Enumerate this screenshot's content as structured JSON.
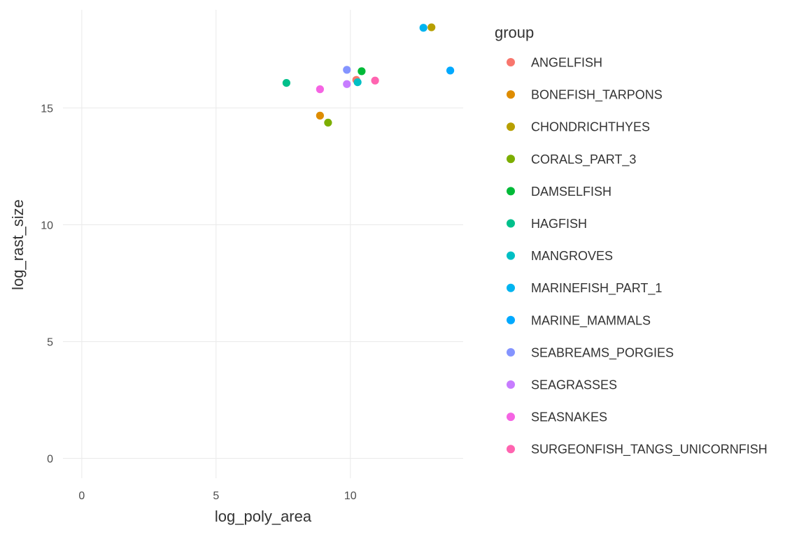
{
  "chart_data": {
    "type": "scatter",
    "xlabel": "log_poly_area",
    "ylabel": "log_rast_size",
    "xlim": [
      -0.7,
      14.2
    ],
    "ylim": [
      -0.85,
      19.2
    ],
    "x_ticks": [
      0,
      5,
      10
    ],
    "y_ticks": [
      0,
      5,
      10,
      15
    ],
    "grid": true,
    "legend": {
      "title": "group",
      "placement": "right"
    },
    "series": [
      {
        "name": "ANGELFISH",
        "color": "#F8766D",
        "points": [
          [
            10.22,
            16.2
          ]
        ]
      },
      {
        "name": "BONEFISH_TARPONS",
        "color": "#DE8C00",
        "points": [
          [
            8.87,
            14.67
          ]
        ]
      },
      {
        "name": "CHONDRICHTHYES",
        "color": "#B79F00",
        "points": [
          [
            13.02,
            18.45
          ]
        ]
      },
      {
        "name": "CORALS_PART_3",
        "color": "#7CAE00",
        "points": [
          [
            9.17,
            14.37
          ]
        ]
      },
      {
        "name": "DAMSELFISH",
        "color": "#00BA38",
        "points": [
          [
            10.42,
            16.57
          ]
        ]
      },
      {
        "name": "HAGFISH",
        "color": "#00C08B",
        "points": [
          [
            7.62,
            16.07
          ]
        ]
      },
      {
        "name": "MANGROVES",
        "color": "#00BFC4",
        "points": [
          [
            10.27,
            16.1
          ]
        ]
      },
      {
        "name": "MARINEFISH_PART_1",
        "color": "#00B4F0",
        "points": [
          [
            12.72,
            18.43
          ]
        ]
      },
      {
        "name": "MARINE_MAMMALS",
        "color": "#00A9FF",
        "points": [
          [
            13.72,
            16.6
          ]
        ]
      },
      {
        "name": "SEABREAMS_PORGIES",
        "color": "#8494FF",
        "points": [
          [
            9.87,
            16.63
          ]
        ]
      },
      {
        "name": "SEAGRASSES",
        "color": "#C77CFF",
        "points": [
          [
            9.87,
            16.02
          ]
        ]
      },
      {
        "name": "SEASNAKES",
        "color": "#F564E3",
        "points": [
          [
            8.87,
            15.8
          ]
        ]
      },
      {
        "name": "SURGEONFISH_TANGS_UNICORNFISH",
        "color": "#FF64B0",
        "points": [
          [
            10.92,
            16.17
          ]
        ]
      }
    ]
  }
}
